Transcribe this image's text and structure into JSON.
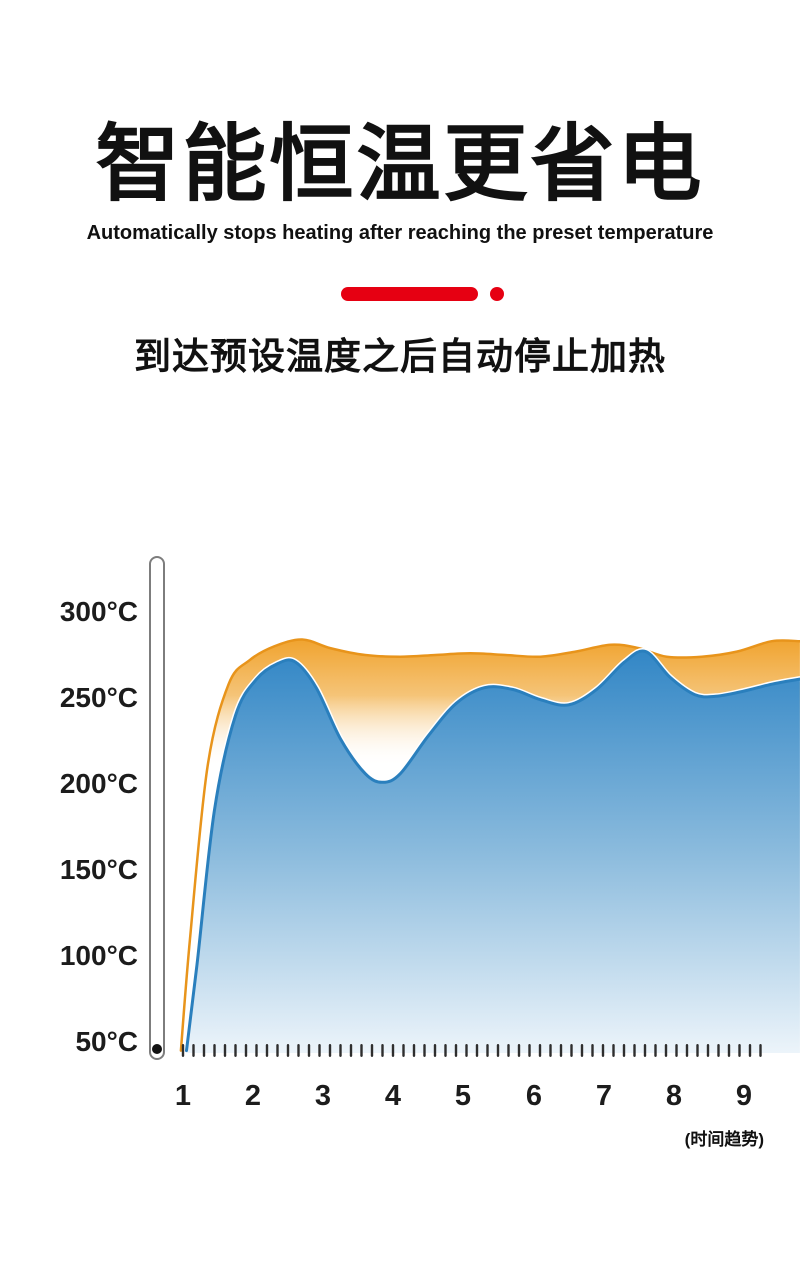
{
  "theme": {
    "accent_color": "#E60012",
    "text_color": "#111111",
    "tick_color": "#2e2e2e",
    "thermometer_color": "#7d7d7d"
  },
  "header": {
    "title_cn": "智能恒温更省电",
    "subtitle_en": "Automatically stops heating after reaching the preset temperature",
    "subtitle_cn": "到达预设温度之后自动停止加热"
  },
  "chart_data": {
    "type": "area",
    "title": "",
    "xlabel": "(时间趋势)",
    "ylabel": "",
    "grid": false,
    "legend_position": "none",
    "x_range": [
      1,
      9.8
    ],
    "y_range": [
      45,
      320
    ],
    "x_ticks": [
      "1",
      "2",
      "3",
      "4",
      "5",
      "6",
      "7",
      "8",
      "9"
    ],
    "y_tick_labels": [
      "300°C",
      "250°C",
      "200°C",
      "150°C",
      "100°C",
      "50°C"
    ],
    "y_tick_values": [
      300,
      250,
      200,
      150,
      100,
      50
    ],
    "y_unit": "°C",
    "series": [
      {
        "name": "preset-temperature-envelope",
        "fill_top_color": "#F0A22C",
        "line_color": "#E8941B",
        "points": [
          [
            0.97,
            45
          ],
          [
            1.1,
            110
          ],
          [
            1.35,
            210
          ],
          [
            1.65,
            258
          ],
          [
            1.95,
            272
          ],
          [
            2.3,
            280
          ],
          [
            2.7,
            284
          ],
          [
            3.1,
            279
          ],
          [
            3.6,
            275
          ],
          [
            4.1,
            274
          ],
          [
            4.6,
            275
          ],
          [
            5.1,
            276
          ],
          [
            5.6,
            275
          ],
          [
            6.1,
            274
          ],
          [
            6.6,
            277
          ],
          [
            7.1,
            281
          ],
          [
            7.5,
            279
          ],
          [
            7.9,
            274
          ],
          [
            8.4,
            274
          ],
          [
            8.9,
            277
          ],
          [
            9.4,
            283
          ],
          [
            9.8,
            283
          ]
        ]
      },
      {
        "name": "actual-temperature",
        "fill_top_color": "#3387C6",
        "line_color": "#2A7FBD",
        "points": [
          [
            1.05,
            45
          ],
          [
            1.2,
            95
          ],
          [
            1.45,
            185
          ],
          [
            1.75,
            240
          ],
          [
            2.05,
            261
          ],
          [
            2.35,
            270
          ],
          [
            2.6,
            271
          ],
          [
            2.9,
            256
          ],
          [
            3.25,
            226
          ],
          [
            3.6,
            206
          ],
          [
            3.85,
            201
          ],
          [
            4.1,
            206
          ],
          [
            4.5,
            228
          ],
          [
            4.9,
            247
          ],
          [
            5.3,
            256
          ],
          [
            5.7,
            255
          ],
          [
            6.1,
            249
          ],
          [
            6.5,
            246
          ],
          [
            6.9,
            255
          ],
          [
            7.3,
            271
          ],
          [
            7.6,
            277
          ],
          [
            7.95,
            262
          ],
          [
            8.3,
            252
          ],
          [
            8.6,
            251
          ],
          [
            9.0,
            254
          ],
          [
            9.4,
            258
          ],
          [
            9.8,
            261
          ]
        ]
      }
    ]
  }
}
